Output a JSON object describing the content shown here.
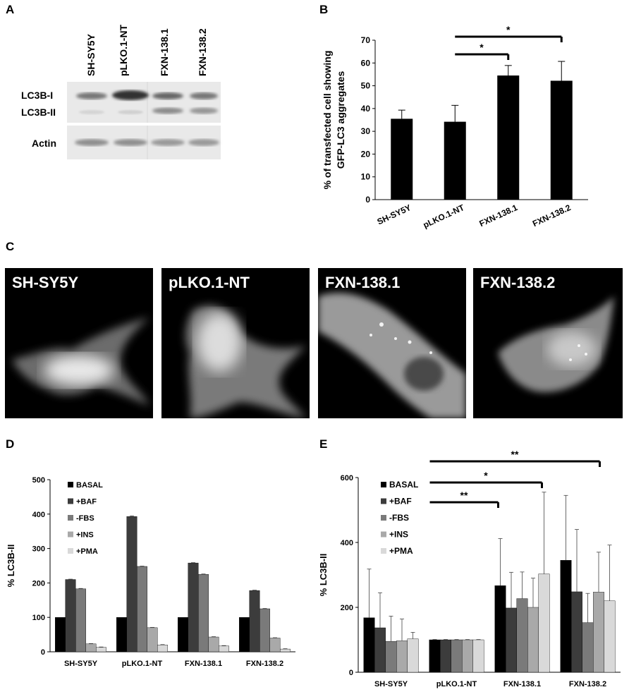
{
  "panels": {
    "a": "A",
    "b": "B",
    "c": "C",
    "d": "D",
    "e": "E"
  },
  "western_blot": {
    "lanes": [
      "SH-SY5Y",
      "pLKO.1-NT",
      "FXN-138.1",
      "FXN-138.2"
    ],
    "row_labels": [
      "LC3B-I",
      "LC3B-II",
      "Actin"
    ]
  },
  "micrographs": [
    {
      "label": "SH-SY5Y"
    },
    {
      "label": "pLKO.1-NT"
    },
    {
      "label": "FXN-138.1"
    },
    {
      "label": "FXN-138.2"
    }
  ],
  "chart_data": [
    {
      "panel": "B",
      "type": "bar",
      "categories": [
        "SH-SY5Y",
        "pLKO.1-NT",
        "FXN-138.1",
        "FXN-138.2"
      ],
      "values": [
        35.5,
        34.2,
        54.5,
        52.2
      ],
      "errors": [
        3.8,
        7.2,
        4.4,
        8.5
      ],
      "ylabel": "% of transfected cell showing GFP-LC3 aggregates",
      "ylim": [
        0,
        70
      ],
      "yticks": [
        0,
        10,
        20,
        30,
        40,
        50,
        60,
        70
      ],
      "significance": [
        {
          "from": 1,
          "to": 2,
          "label": "*"
        },
        {
          "from": 1,
          "to": 3,
          "label": "*"
        }
      ],
      "colors": [
        "#000000"
      ]
    },
    {
      "panel": "D",
      "type": "bar",
      "categories": [
        "SH-SY5Y",
        "pLKO.1-NT",
        "FXN-138.1",
        "FXN-138.2"
      ],
      "series": [
        {
          "name": "BASAL",
          "values": [
            100,
            100,
            100,
            100
          ],
          "errors": [
            0,
            0,
            0,
            0
          ]
        },
        {
          "name": "+BAF",
          "values": [
            210,
            393,
            258,
            178
          ],
          "errors": [
            1,
            2,
            1,
            1
          ]
        },
        {
          "name": "-FBS",
          "values": [
            183,
            248,
            225,
            125
          ],
          "errors": [
            1,
            1,
            1,
            1
          ]
        },
        {
          "name": "+INS",
          "values": [
            23,
            70,
            43,
            40
          ],
          "errors": [
            1,
            1,
            1,
            1
          ]
        },
        {
          "name": "+PMA",
          "values": [
            13,
            20,
            17,
            8
          ],
          "errors": [
            1,
            1,
            1,
            1
          ]
        }
      ],
      "ylabel": "% LC3B-II",
      "ylim": [
        0,
        500
      ],
      "yticks": [
        0,
        100,
        200,
        300,
        400,
        500
      ],
      "legend": "top-left",
      "colors": [
        "#000000",
        "#3c3c3c",
        "#7a7a7a",
        "#a9a9a9",
        "#d9d9d9"
      ]
    },
    {
      "panel": "E",
      "type": "bar",
      "categories": [
        "SH-SY5Y",
        "pLKO.1-NT",
        "FXN-138.1",
        "FXN-138.2"
      ],
      "series": [
        {
          "name": "BASAL",
          "values": [
            168,
            100,
            267,
            345
          ],
          "errors": [
            150,
            1,
            145,
            200
          ]
        },
        {
          "name": "+BAF",
          "values": [
            137,
            100,
            198,
            248
          ],
          "errors": [
            108,
            1,
            110,
            192
          ]
        },
        {
          "name": "-FBS",
          "values": [
            95,
            100,
            227,
            153
          ],
          "errors": [
            78,
            1,
            82,
            90
          ]
        },
        {
          "name": "+INS",
          "values": [
            97,
            100,
            200,
            247
          ],
          "errors": [
            67,
            1,
            90,
            123
          ]
        },
        {
          "name": "+PMA",
          "values": [
            103,
            100,
            303,
            220
          ],
          "errors": [
            20,
            1,
            252,
            172
          ]
        }
      ],
      "ylabel": "% LC3B-II",
      "ylim": [
        0,
        600
      ],
      "yticks": [
        0,
        200,
        400,
        600
      ],
      "legend": "top-left",
      "significance": [
        {
          "from": 1,
          "to": 2,
          "label": "**"
        },
        {
          "from": 1,
          "to": 2,
          "label": "*"
        },
        {
          "from": 1,
          "to": 3,
          "label": "**"
        }
      ],
      "colors": [
        "#000000",
        "#3c3c3c",
        "#7a7a7a",
        "#a9a9a9",
        "#d9d9d9"
      ]
    }
  ]
}
